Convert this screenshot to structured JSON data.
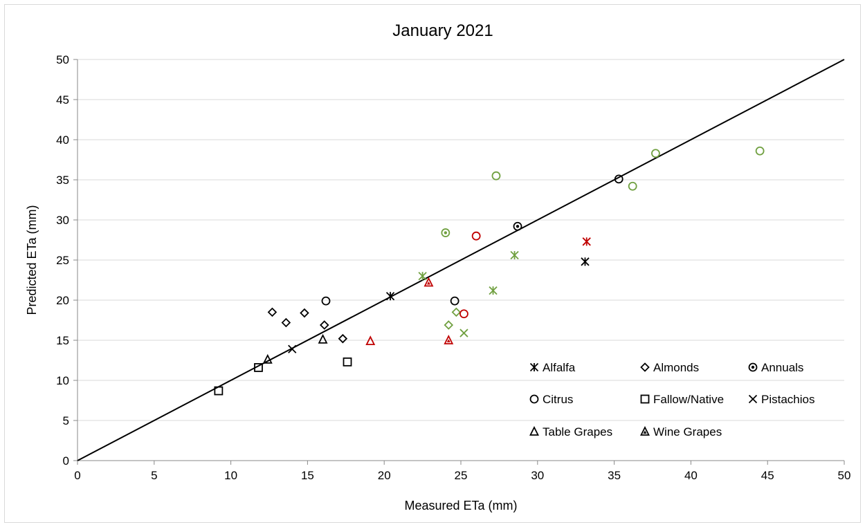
{
  "chart_data": {
    "type": "scatter",
    "title": "January 2021",
    "xlabel": "Measured ETa (mm)",
    "ylabel": "Predicted ETa (mm)",
    "xlim": [
      0,
      50
    ],
    "ylim": [
      0,
      50
    ],
    "xticks": [
      0,
      5,
      10,
      15,
      20,
      25,
      30,
      35,
      40,
      45,
      50
    ],
    "yticks": [
      0,
      5,
      10,
      15,
      20,
      25,
      30,
      35,
      40,
      45,
      50
    ],
    "grid": "horizontal",
    "reference_line": {
      "from": [
        0,
        0
      ],
      "to": [
        50,
        50
      ]
    },
    "legend_position": "bottom-right",
    "colors": {
      "black": "#000000",
      "green": "#70a040",
      "red": "#c00000"
    },
    "series": [
      {
        "name": "Alfalfa",
        "marker": "asterisk",
        "points": [
          {
            "x": 20.4,
            "y": 20.5,
            "color": "black"
          },
          {
            "x": 33.1,
            "y": 24.8,
            "color": "black"
          },
          {
            "x": 22.5,
            "y": 23.0,
            "color": "green"
          },
          {
            "x": 28.5,
            "y": 25.6,
            "color": "green"
          },
          {
            "x": 27.1,
            "y": 21.2,
            "color": "green"
          },
          {
            "x": 33.2,
            "y": 27.3,
            "color": "red"
          }
        ]
      },
      {
        "name": "Almonds",
        "marker": "diamond",
        "points": [
          {
            "x": 12.7,
            "y": 18.5,
            "color": "black"
          },
          {
            "x": 13.6,
            "y": 17.2,
            "color": "black"
          },
          {
            "x": 14.8,
            "y": 18.4,
            "color": "black"
          },
          {
            "x": 16.1,
            "y": 16.9,
            "color": "black"
          },
          {
            "x": 17.3,
            "y": 15.2,
            "color": "black"
          },
          {
            "x": 24.2,
            "y": 16.9,
            "color": "green"
          },
          {
            "x": 24.7,
            "y": 18.5,
            "color": "green"
          }
        ]
      },
      {
        "name": "Annuals",
        "marker": "circle-dot",
        "points": [
          {
            "x": 28.7,
            "y": 29.2,
            "color": "black"
          },
          {
            "x": 24.0,
            "y": 28.4,
            "color": "green"
          }
        ]
      },
      {
        "name": "Citrus",
        "marker": "circle",
        "points": [
          {
            "x": 16.2,
            "y": 19.9,
            "color": "black"
          },
          {
            "x": 24.6,
            "y": 19.9,
            "color": "black"
          },
          {
            "x": 35.3,
            "y": 35.1,
            "color": "black"
          },
          {
            "x": 27.3,
            "y": 35.5,
            "color": "green"
          },
          {
            "x": 37.7,
            "y": 38.3,
            "color": "green"
          },
          {
            "x": 36.2,
            "y": 34.2,
            "color": "green"
          },
          {
            "x": 44.5,
            "y": 38.6,
            "color": "green"
          },
          {
            "x": 26.0,
            "y": 28.0,
            "color": "red"
          },
          {
            "x": 25.2,
            "y": 18.3,
            "color": "red"
          }
        ]
      },
      {
        "name": "Fallow/Native",
        "marker": "square",
        "points": [
          {
            "x": 9.2,
            "y": 8.7,
            "color": "black"
          },
          {
            "x": 11.8,
            "y": 11.6,
            "color": "black"
          },
          {
            "x": 17.6,
            "y": 12.3,
            "color": "black"
          }
        ]
      },
      {
        "name": "Pistachios",
        "marker": "x",
        "points": [
          {
            "x": 14.0,
            "y": 13.9,
            "color": "black"
          },
          {
            "x": 25.2,
            "y": 15.9,
            "color": "green"
          }
        ]
      },
      {
        "name": "Table Grapes",
        "marker": "triangle",
        "points": [
          {
            "x": 12.4,
            "y": 12.6,
            "color": "black"
          },
          {
            "x": 16.0,
            "y": 15.1,
            "color": "black"
          },
          {
            "x": 19.1,
            "y": 14.9,
            "color": "red"
          }
        ]
      },
      {
        "name": "Wine Grapes",
        "marker": "triangle-dot",
        "points": [
          {
            "x": 22.9,
            "y": 22.2,
            "color": "red"
          },
          {
            "x": 24.2,
            "y": 15.0,
            "color": "red"
          }
        ]
      }
    ]
  }
}
